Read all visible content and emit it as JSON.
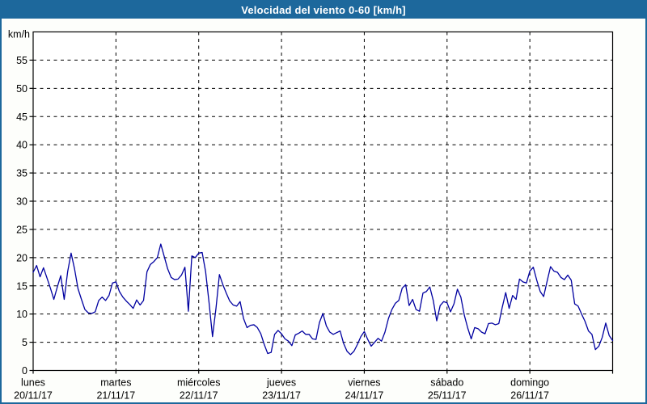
{
  "colors": {
    "chrome_blue": "#1d689c",
    "title_text": "#ffffff",
    "plot_background": "#ffffff",
    "page_background": "#fdfefb",
    "grid_and_axis": "#000000",
    "label_text": "#000000",
    "series_line": "#0000a0"
  },
  "chart_data": {
    "type": "line",
    "title": "Velocidad del viento 0-60 [km/h]",
    "grid": "dashed",
    "legend": "none",
    "y_axis": {
      "unit_label": "km/h",
      "min": 0,
      "max": 60,
      "tick_step": 5,
      "tick_labels": [
        0,
        5,
        10,
        15,
        20,
        25,
        30,
        35,
        40,
        45,
        50,
        55
      ]
    },
    "x_axis": {
      "days": [
        {
          "name": "lunes",
          "date": "20/11/17"
        },
        {
          "name": "martes",
          "date": "21/11/17"
        },
        {
          "name": "miércoles",
          "date": "22/11/17"
        },
        {
          "name": "jueves",
          "date": "23/11/17"
        },
        {
          "name": "viernes",
          "date": "24/11/17"
        },
        {
          "name": "sábado",
          "date": "25/11/17"
        },
        {
          "name": "domingo",
          "date": "26/11/17"
        }
      ],
      "points_per_day": 24,
      "sampling": "hourly"
    },
    "series": [
      {
        "name": "Velocidad del viento",
        "unit": "km/h",
        "values": [
          17.4,
          18.6,
          16.6,
          18.2,
          16.4,
          14.6,
          12.6,
          14.8,
          16.8,
          12.6,
          17.5,
          20.8,
          18.0,
          14.5,
          12.6,
          10.8,
          10.2,
          10.1,
          10.4,
          12.4,
          13.0,
          12.4,
          13.3,
          15.5,
          15.7,
          14.0,
          13.0,
          12.3,
          11.7,
          11.0,
          12.5,
          11.6,
          12.4,
          17.5,
          18.8,
          19.3,
          20.0,
          22.4,
          20.2,
          18.0,
          16.5,
          16.1,
          16.2,
          16.9,
          18.3,
          10.5,
          20.3,
          20.0,
          20.8,
          20.9,
          17.5,
          12.0,
          6.0,
          11.0,
          17.0,
          15.2,
          13.7,
          12.3,
          11.6,
          11.4,
          12.2,
          9.2,
          7.6,
          8.0,
          8.1,
          7.6,
          6.5,
          4.6,
          3.0,
          3.2,
          6.4,
          7.1,
          6.5,
          5.6,
          5.2,
          4.4,
          6.3,
          6.6,
          7.0,
          6.4,
          6.4,
          5.6,
          5.5,
          8.5,
          10.1,
          7.9,
          6.8,
          6.4,
          6.7,
          7.0,
          4.8,
          3.4,
          2.8,
          3.4,
          4.6,
          6.0,
          6.9,
          5.5,
          4.3,
          5.0,
          5.7,
          5.2,
          6.8,
          9.2,
          10.8,
          11.9,
          12.4,
          14.6,
          15.2,
          11.5,
          12.6,
          10.8,
          10.5,
          13.7,
          14.0,
          14.8,
          12.4,
          8.8,
          11.5,
          12.2,
          12.0,
          10.4,
          11.8,
          14.4,
          13.0,
          9.8,
          7.5,
          5.6,
          7.6,
          7.4,
          6.8,
          6.5,
          8.3,
          8.4,
          8.1,
          8.3,
          11.2,
          13.8,
          11.0,
          13.3,
          12.6,
          16.2,
          15.7,
          15.5,
          17.6,
          18.3,
          16.0,
          14.0,
          13.1,
          15.8,
          18.4,
          17.6,
          17.4,
          16.5,
          16.1,
          16.9,
          16.0,
          11.8,
          11.4,
          10.0,
          8.7,
          7.0,
          6.4,
          3.7,
          4.3,
          5.9,
          8.4,
          6.2,
          5.3
        ]
      }
    ]
  }
}
